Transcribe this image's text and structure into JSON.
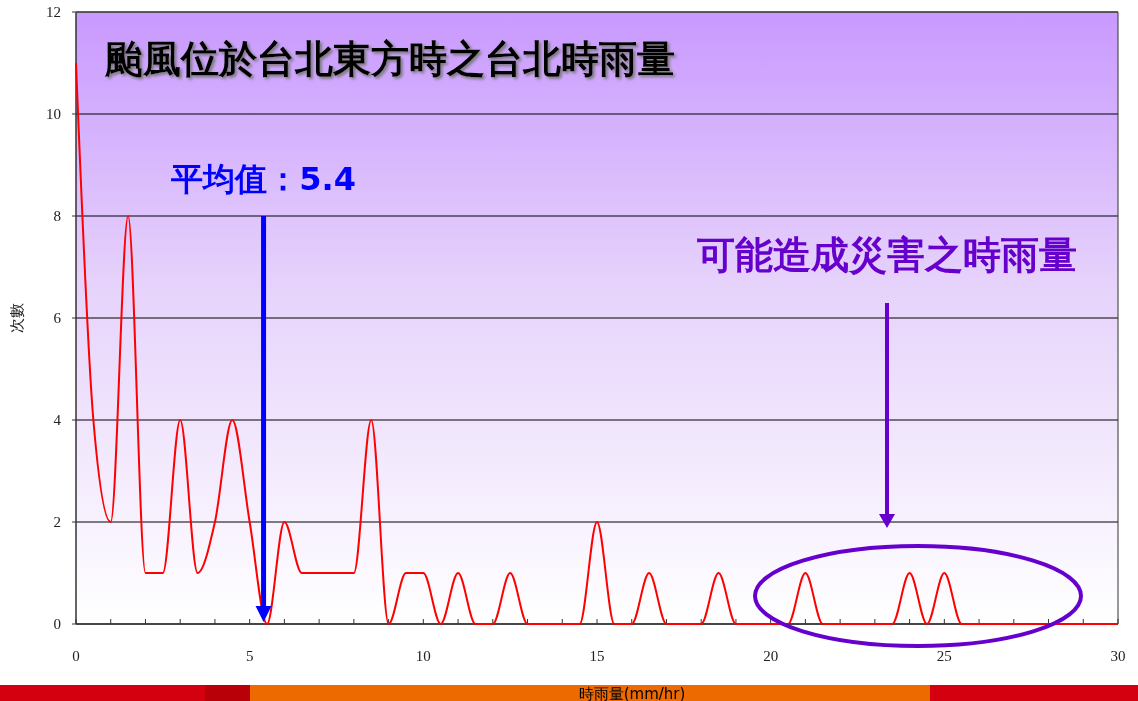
{
  "chart_data": {
    "type": "line",
    "title": "颱風位於台北東方時之台北時雨量",
    "xlabel": "時雨量(mm/hr)",
    "ylabel": "次數",
    "x": [
      0,
      0.5,
      1,
      1.5,
      2,
      2.5,
      3,
      3.5,
      4,
      4.5,
      5,
      5.5,
      6,
      6.5,
      7,
      7.5,
      8,
      8.5,
      9,
      9.5,
      10,
      10.5,
      11,
      11.5,
      12,
      12.5,
      13,
      13.5,
      14,
      14.5,
      15,
      15.5,
      16,
      16.5,
      17,
      17.5,
      18,
      18.5,
      19,
      19.5,
      20,
      20.5,
      21,
      21.5,
      22,
      22.5,
      23,
      23.5,
      24,
      24.5,
      25,
      25.5,
      26,
      26.5,
      27,
      27.5,
      28,
      28.5,
      29,
      29.5,
      30
    ],
    "series": [
      {
        "color": "#ff0000",
        "values": [
          11,
          4,
          2,
          8,
          1,
          1,
          4,
          1,
          2,
          4,
          2,
          0,
          2,
          1,
          1,
          1,
          1,
          4,
          0,
          1,
          1,
          0,
          1,
          0,
          0,
          1,
          0,
          0,
          0,
          0,
          2,
          0,
          0,
          1,
          0,
          0,
          0,
          1,
          0,
          0,
          0,
          0,
          1,
          0,
          0,
          0,
          0,
          0,
          1,
          0,
          1,
          0,
          0,
          0,
          0,
          0,
          0,
          0,
          0,
          0,
          0
        ]
      }
    ],
    "xlim": [
      0,
      30
    ],
    "xticks": [
      0,
      {
        "value": 1,
        "label": null
      },
      {
        "value": 2,
        "label": null
      },
      {
        "value": 3,
        "label": null
      },
      {
        "value": 4,
        "label": null
      },
      5,
      {
        "value": 6,
        "label": null
      },
      {
        "value": 7,
        "label": null
      },
      {
        "value": 8,
        "label": null
      },
      {
        "value": 9,
        "label": null
      },
      10,
      {
        "value": 11,
        "label": null
      },
      {
        "value": 12,
        "label": null
      },
      {
        "value": 13,
        "label": null
      },
      {
        "value": 14,
        "label": null
      },
      15,
      {
        "value": 16,
        "label": null
      },
      {
        "value": 17,
        "label": null
      },
      {
        "value": 18,
        "label": null
      },
      {
        "value": 19,
        "label": null
      },
      20,
      {
        "value": 21,
        "label": null
      },
      {
        "value": 22,
        "label": null
      },
      {
        "value": 23,
        "label": null
      },
      {
        "value": 24,
        "label": null
      },
      25,
      {
        "value": 26,
        "label": null
      },
      {
        "value": 27,
        "label": null
      },
      {
        "value": 28,
        "label": null
      },
      {
        "value": 29,
        "label": null
      },
      30
    ],
    "ylim": [
      0,
      12
    ],
    "yticks": [
      0,
      2,
      4,
      6,
      8,
      10,
      12
    ],
    "grid": "y",
    "marker": "none",
    "line_style": "solid",
    "ref_lines": [
      {
        "axis": "x",
        "value": 5.4,
        "label": "平均值：5.4",
        "color": "#0000ff"
      }
    ],
    "annotations": [
      "可能造成災害之時雨量"
    ]
  }
}
